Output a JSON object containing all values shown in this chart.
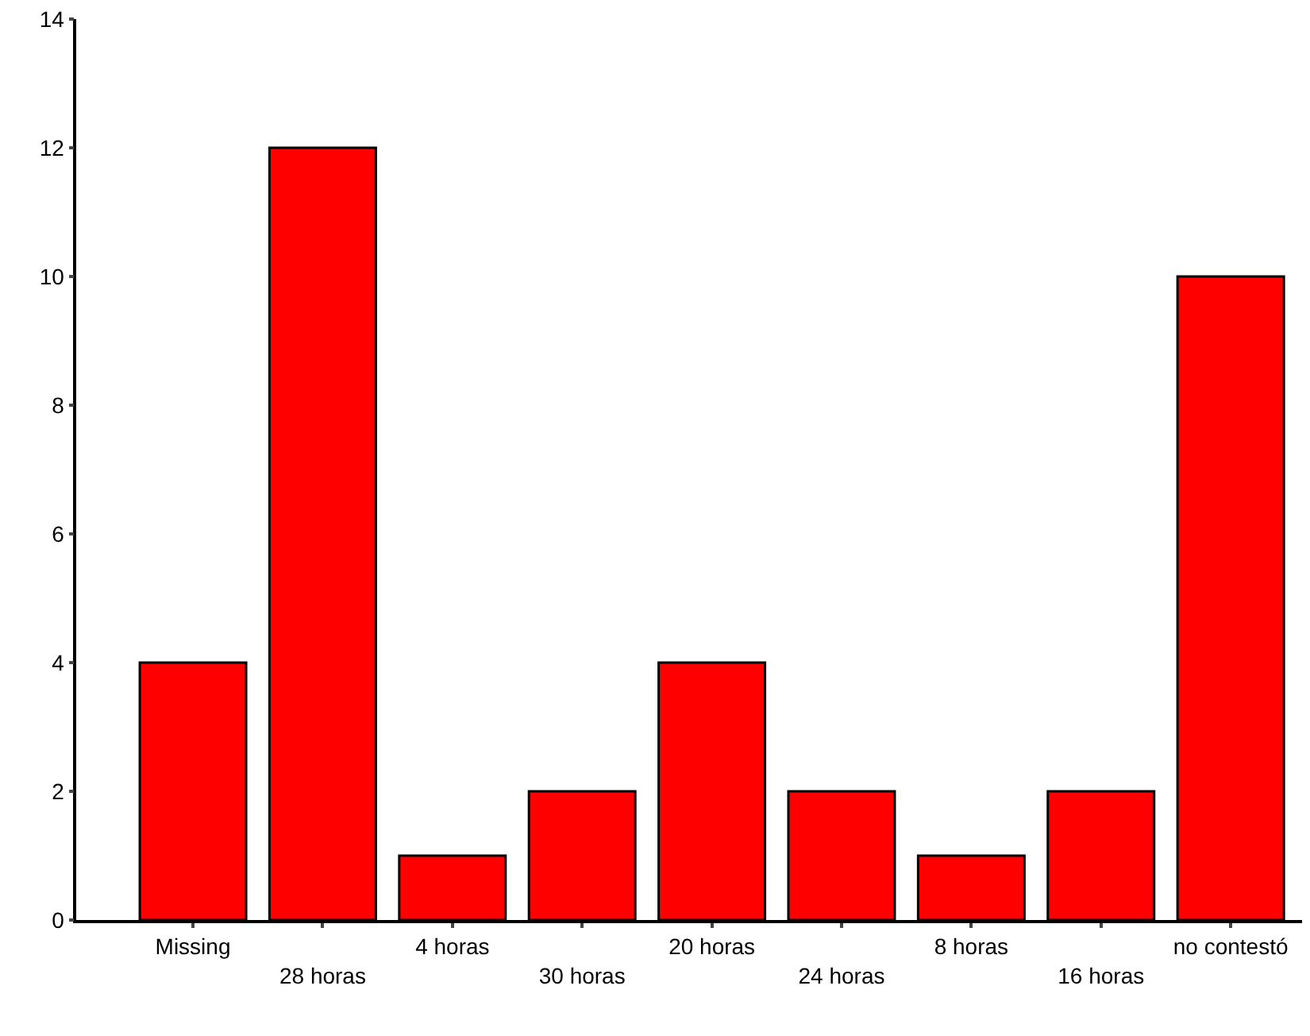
{
  "chart_data": {
    "type": "bar",
    "categories": [
      "Missing",
      "28 horas",
      "4 horas",
      "30 horas",
      "20 horas",
      "24 horas",
      "8 horas",
      "16 horas",
      "no contestó"
    ],
    "values": [
      4,
      12,
      1,
      2,
      4,
      2,
      1,
      2,
      10
    ],
    "color": "#ff0000",
    "ylim": [
      0,
      14
    ],
    "yticks": [
      0,
      2,
      4,
      6,
      8,
      10,
      12,
      14
    ]
  }
}
